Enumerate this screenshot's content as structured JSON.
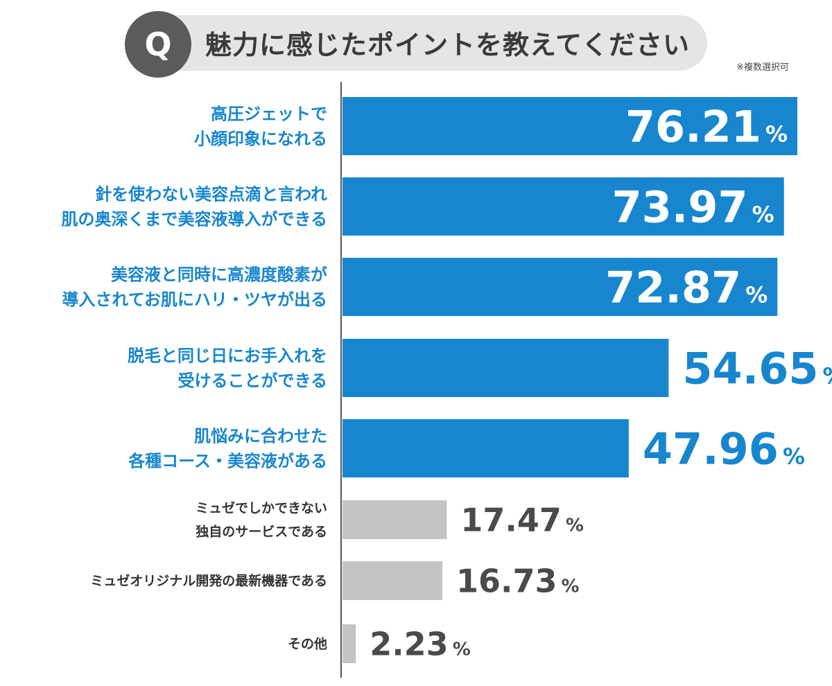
{
  "question": {
    "badge": "Q",
    "text": "魅力に感じたポイントを教えてください",
    "note": "※複数選択可"
  },
  "colors": {
    "highlight": "#1786cf",
    "muted_bar": "#c4c4c4",
    "muted_text": "#4a4a4a",
    "banner": "#e5e5e5",
    "badge": "#5b5b5b"
  },
  "chart_data": {
    "type": "bar",
    "orientation": "horizontal",
    "unit": "%",
    "xlim": [
      0,
      76.21
    ],
    "categories": [
      [
        "高圧ジェットで",
        "小顔印象になれる"
      ],
      [
        "針を使わない美容点滴と言われ",
        "肌の奥深くまで美容液導入ができる"
      ],
      [
        "美容液と同時に高濃度酸素が",
        "導入されてお肌にハリ・ツヤが出る"
      ],
      [
        "脱毛と同じ日にお手入れを",
        "受けることができる"
      ],
      [
        "肌悩みに合わせた",
        "各種コース・美容液がある"
      ],
      [
        "ミュゼでしかできない",
        "独自のサービスである"
      ],
      [
        "ミュゼオリジナル開発の最新機器である"
      ],
      [
        "その他"
      ]
    ],
    "values": [
      76.21,
      73.97,
      72.87,
      54.65,
      47.96,
      17.47,
      16.73,
      2.23
    ],
    "value_labels": [
      "76.21",
      "73.97",
      "72.87",
      "54.65",
      "47.96",
      "17.47",
      "16.73",
      "2.23"
    ],
    "highlighted": [
      true,
      true,
      true,
      true,
      true,
      false,
      false,
      false
    ]
  }
}
